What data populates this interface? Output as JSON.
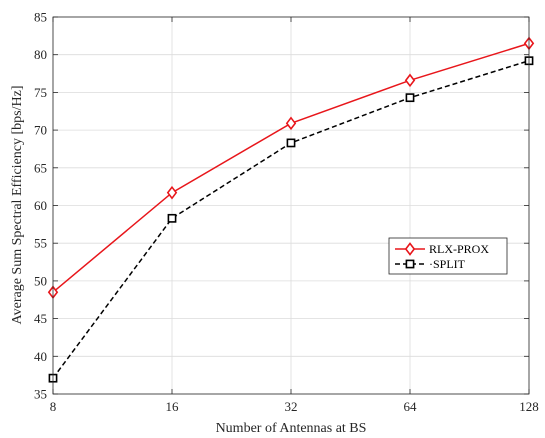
{
  "chart_data": {
    "type": "line",
    "x": [
      8,
      16,
      32,
      64,
      128
    ],
    "x_tick_labels": [
      "8",
      "16",
      "32",
      "64",
      "128"
    ],
    "x_scale": "log2",
    "y_ticks": [
      35,
      40,
      45,
      50,
      55,
      60,
      65,
      70,
      75,
      80,
      85
    ],
    "ylim": [
      35,
      85
    ],
    "xlabel": "Number of Antennas at BS",
    "ylabel": "Average Sum Spectral Efficiency [bps/Hz]",
    "grid": true,
    "legend_position": "center-right",
    "series": [
      {
        "name": "RLX-PROX",
        "values": [
          48.5,
          61.7,
          70.9,
          76.6,
          81.5
        ],
        "color": "#e8161b",
        "line_style": "solid",
        "marker": "diamond"
      },
      {
        "name": "SPLIT",
        "legend_label": "·SPLIT",
        "values": [
          37.1,
          58.3,
          68.3,
          74.3,
          79.2
        ],
        "color": "#000000",
        "line_style": "dashed",
        "marker": "square"
      }
    ]
  }
}
